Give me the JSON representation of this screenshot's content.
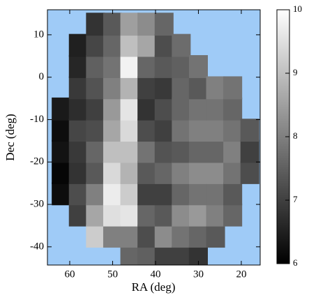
{
  "chart_data": {
    "type": "heatmap",
    "xlabel": "RA (deg)",
    "ylabel": "Dec (deg)",
    "xlim": [
      65.2,
      15.6
    ],
    "ylim": [
      -44.3,
      15.9
    ],
    "xticks": [
      60,
      50,
      40,
      30,
      20
    ],
    "yticks": [
      10,
      0,
      -10,
      -20,
      -30,
      -40
    ],
    "cell_size": [
      4.4,
      5.4
    ],
    "background": "#9fcbf7",
    "clim": [
      6,
      10
    ],
    "colorbar_ticks": [
      6,
      7,
      8,
      9,
      10
    ],
    "x": [
      62,
      62,
      62,
      62,
      62,
      58,
      58,
      58,
      58,
      58,
      58,
      58,
      58,
      58,
      54,
      54,
      54,
      54,
      54,
      54,
      54,
      54,
      54,
      54,
      54,
      50,
      50,
      50,
      50,
      50,
      50,
      50,
      50,
      50,
      50,
      50,
      46,
      46,
      46,
      46,
      46,
      46,
      46,
      46,
      46,
      46,
      46,
      46,
      42,
      42,
      42,
      42,
      42,
      42,
      42,
      42,
      42,
      42,
      42,
      42,
      38,
      38,
      38,
      38,
      38,
      38,
      38,
      38,
      38,
      38,
      38,
      38,
      34,
      34,
      34,
      34,
      34,
      34,
      34,
      34,
      34,
      34,
      34,
      30,
      30,
      30,
      30,
      30,
      30,
      30,
      30,
      30,
      30,
      26,
      26,
      26,
      26,
      26,
      26,
      26,
      26,
      22,
      22,
      22,
      22,
      22,
      22,
      22,
      18,
      18,
      18
    ],
    "y": [
      -27.5,
      -22.5,
      -17.5,
      -12.5,
      -7.5,
      -32.5,
      -27.5,
      -22.5,
      -17.5,
      -12.5,
      -7.5,
      -2.5,
      2.5,
      7.5,
      -37.5,
      -32.5,
      -27.5,
      -22.5,
      -17.5,
      -12.5,
      -7.5,
      -2.5,
      2.5,
      7.5,
      12.5,
      -37.5,
      -32.5,
      -27.5,
      -22.5,
      -17.5,
      -12.5,
      -7.5,
      -2.5,
      2.5,
      7.5,
      12.5,
      -42.5,
      -37.5,
      -32.5,
      -27.5,
      -22.5,
      -17.5,
      -12.5,
      -7.5,
      -2.5,
      2.5,
      7.5,
      12.5,
      -42.5,
      -37.5,
      -32.5,
      -27.5,
      -22.5,
      -17.5,
      -12.5,
      -7.5,
      -2.5,
      2.5,
      7.5,
      12.5,
      -42.5,
      -37.5,
      -32.5,
      -27.5,
      -22.5,
      -17.5,
      -12.5,
      -7.5,
      -2.5,
      2.5,
      7.5,
      12.5,
      -42.5,
      -37.5,
      -32.5,
      -27.5,
      -22.5,
      -17.5,
      -12.5,
      -7.5,
      -2.5,
      2.5,
      7.5,
      -42.5,
      -37.5,
      -32.5,
      -27.5,
      -22.5,
      -17.5,
      -12.5,
      -7.5,
      -2.5,
      2.5,
      -37.5,
      -32.5,
      -27.5,
      -22.5,
      -17.5,
      -12.5,
      -7.5,
      -2.5,
      -32.5,
      -27.5,
      -22.5,
      -17.5,
      -12.5,
      -7.5,
      -2.5,
      -22.5,
      -17.5,
      -12.5
    ],
    "values": [
      6.2,
      6.1,
      6.3,
      6.2,
      6.4,
      7.0,
      7.2,
      6.8,
      6.9,
      7.1,
      6.7,
      6.9,
      6.6,
      6.5,
      9.2,
      8.6,
      8.0,
      7.4,
      7.6,
      7.2,
      7.0,
      7.3,
      7.5,
      7.1,
      6.8,
      8.0,
      9.5,
      9.7,
      9.4,
      9.0,
      8.6,
      8.4,
      8.0,
      7.8,
      7.6,
      7.4,
      7.6,
      8.0,
      9.6,
      9.2,
      8.8,
      9.0,
      9.4,
      9.6,
      8.8,
      9.8,
      9.0,
      8.5,
      7.5,
      7.2,
      7.6,
      7.0,
      7.4,
      7.8,
      7.2,
      6.8,
      7.0,
      7.6,
      8.6,
      8.2,
      7.0,
      8.2,
      7.4,
      7.0,
      7.6,
      7.3,
      7.0,
      7.2,
      6.9,
      7.4,
      7.2,
      7.6,
      7.0,
      7.8,
      8.2,
      7.6,
      8.0,
      7.4,
      7.8,
      7.6,
      7.6,
      7.5,
      7.7,
      6.8,
      7.6,
      8.4,
      7.8,
      8.2,
      7.6,
      8.0,
      7.8,
      7.4,
      7.8,
      7.4,
      8.0,
      7.8,
      8.2,
      7.6,
      8.0,
      7.8,
      8.0,
      7.6,
      7.4,
      7.8,
      8.0,
      7.8,
      7.6,
      7.8,
      7.2,
      7.0,
      7.4
    ]
  }
}
